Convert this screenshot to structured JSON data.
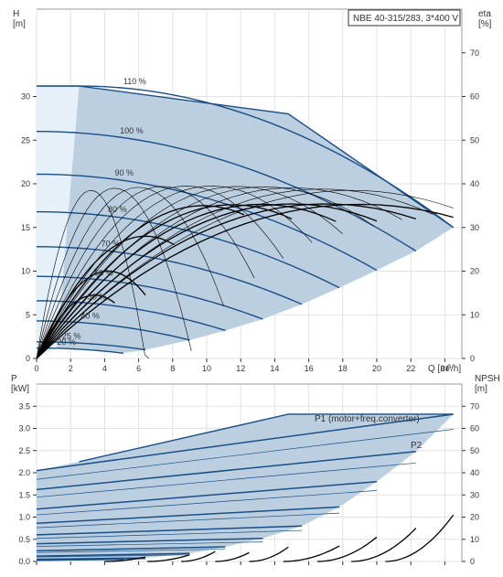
{
  "chart_data": [
    {
      "type": "line",
      "title": "NBE 40-315/283, 3*400 V",
      "xlabel": "Q [m³/h]",
      "ylabel": "H\n[m]",
      "y2label": "eta\n[%]",
      "xlim": [
        0,
        25
      ],
      "ylim": [
        0,
        40
      ],
      "y2lim": [
        0,
        80
      ],
      "x_ticks": [
        "0",
        "2",
        "4",
        "6",
        "8",
        "10",
        "12",
        "14",
        "16",
        "18",
        "20",
        "22",
        "24"
      ],
      "y_ticks": [
        "0",
        "5",
        "10",
        "15",
        "20",
        "25",
        "30"
      ],
      "y2_ticks": [
        "0",
        "10",
        "20",
        "30",
        "40",
        "50",
        "60",
        "70"
      ],
      "grid": true,
      "colors": {
        "curve": "#1a4f86",
        "area": "#bccfe0",
        "eta": "#000000"
      },
      "speed_curves": [
        {
          "label": "110 %",
          "h0": 31.2,
          "x_end": 24.5,
          "h_end": 15.0,
          "x_flat": 2.5
        },
        {
          "label": "100 %",
          "h0": 26.0,
          "x_end": 22.3,
          "h_end": 12.3
        },
        {
          "label": "90 %",
          "h0": 21.1,
          "x_end": 20.0,
          "h_end": 10.1
        },
        {
          "label": "80 %",
          "h0": 16.8,
          "x_end": 17.8,
          "h_end": 8.1
        },
        {
          "label": "70 %",
          "h0": 12.8,
          "x_end": 15.6,
          "h_end": 6.2
        },
        {
          "label": "60 %",
          "h0": 9.4,
          "x_end": 13.3,
          "h_end": 4.5
        },
        {
          "label": "50 %",
          "h0": 6.6,
          "x_end": 11.1,
          "h_end": 3.2
        },
        {
          "label": "40 %",
          "h0": 4.3,
          "x_end": 9.0,
          "h_end": 2.1
        },
        {
          "label": "25 %",
          "h0": 1.9,
          "x_end": 6.4,
          "h_end": 1.0
        },
        {
          "label": "20 %",
          "h0": 1.2,
          "x_end": 5.1,
          "h_end": 0.6
        }
      ],
      "limit_curve": [
        [
          2.5,
          31.2
        ],
        [
          14.8,
          28.0
        ],
        [
          24.5,
          15.0
        ]
      ],
      "eta_curves": [
        {
          "peak_x": 3.2,
          "peak_eta": 38.5,
          "x_end": 6.6
        },
        {
          "peak_x": 4.6,
          "peak_eta": 39.0,
          "x_end": 9.1
        },
        {
          "peak_x": 6.0,
          "peak_eta": 39.2,
          "x_end": 11.0
        },
        {
          "peak_x": 7.4,
          "peak_eta": 39.4,
          "x_end": 12.8
        },
        {
          "peak_x": 8.8,
          "peak_eta": 39.5,
          "x_end": 14.5
        },
        {
          "peak_x": 10.3,
          "peak_eta": 39.5,
          "x_end": 16.2
        },
        {
          "peak_x": 11.8,
          "peak_eta": 39.4,
          "x_end": 18.0
        },
        {
          "peak_x": 13.4,
          "peak_eta": 39.3,
          "x_end": 19.8
        },
        {
          "peak_x": 15.0,
          "peak_eta": 39.1,
          "x_end": 21.5
        },
        {
          "peak_x": 16.8,
          "peak_eta": 38.8,
          "x_end": 23.3
        },
        {
          "peak_x": 18.5,
          "peak_eta": 38.5,
          "x_end": 24.5
        },
        {
          "peak_x": 9.8,
          "peak_eta": 35.0,
          "x_end": 12.2
        },
        {
          "peak_x": 11.5,
          "peak_eta": 35.2,
          "x_end": 15.0
        },
        {
          "peak_x": 13.2,
          "peak_eta": 35.3,
          "x_end": 17.6
        },
        {
          "peak_x": 15.0,
          "peak_eta": 35.4,
          "x_end": 20.0
        },
        {
          "peak_x": 17.0,
          "peak_eta": 35.4,
          "x_end": 22.3
        },
        {
          "peak_x": 19.0,
          "peak_eta": 35.3,
          "x_end": 24.5
        },
        {
          "peak_x": 6.4,
          "peak_eta": 28.0,
          "x_end": 8.1
        },
        {
          "peak_x": 4.2,
          "peak_eta": 20.0,
          "x_end": 6.4
        },
        {
          "peak_x": 3.4,
          "peak_eta": 14.5,
          "x_end": 4.6
        }
      ]
    },
    {
      "type": "line",
      "xlabel": "",
      "ylabel": "P\n[kW]",
      "y2label": "NPSH\n[m]",
      "xlim": [
        0,
        25
      ],
      "ylim": [
        0,
        4
      ],
      "y2lim": [
        0,
        80
      ],
      "y_ticks": [
        "0.0",
        "0.5",
        "1.0",
        "1.5",
        "2.0",
        "2.5",
        "3.0",
        "3.5"
      ],
      "y2_ticks": [
        "0",
        "10",
        "20",
        "30",
        "40",
        "50",
        "60",
        "70"
      ],
      "grid": true,
      "series_labels": {
        "p1": "P1 (motor+freq.converter)",
        "p2": "P2"
      },
      "p1_envelope": [
        [
          2.5,
          2.25
        ],
        [
          14.8,
          3.32
        ],
        [
          24.5,
          3.32
        ]
      ],
      "power_curves": [
        {
          "p1_start": 2.05,
          "p2_start": 1.85,
          "x_end": 24.5,
          "p1_end": 3.32,
          "p2_end": 2.98
        },
        {
          "p1_start": 1.62,
          "p2_start": 1.45,
          "x_end": 22.3,
          "p1_end": 2.48,
          "p2_end": 2.22
        },
        {
          "p1_start": 1.18,
          "p2_start": 1.05,
          "x_end": 20.0,
          "p1_end": 1.8,
          "p2_end": 1.6
        },
        {
          "p1_start": 0.86,
          "p2_start": 0.76,
          "x_end": 17.8,
          "p1_end": 1.23,
          "p2_end": 1.09
        },
        {
          "p1_start": 0.6,
          "p2_start": 0.52,
          "x_end": 15.6,
          "p1_end": 0.8,
          "p2_end": 0.7
        },
        {
          "p1_start": 0.4,
          "p2_start": 0.34,
          "x_end": 13.3,
          "p1_end": 0.52,
          "p2_end": 0.44
        },
        {
          "p1_start": 0.24,
          "p2_start": 0.2,
          "x_end": 11.1,
          "p1_end": 0.33,
          "p2_end": 0.28
        },
        {
          "p1_start": 0.12,
          "p2_start": 0.1,
          "x_end": 9.0,
          "p1_end": 0.18,
          "p2_end": 0.15
        },
        {
          "p1_start": 0.05,
          "p2_start": 0.04,
          "x_end": 6.4,
          "p1_end": 0.08,
          "p2_end": 0.06
        },
        {
          "p1_start": 0.03,
          "p2_start": 0.02,
          "x_end": 5.1,
          "p1_end": 0.05,
          "p2_end": 0.04
        }
      ],
      "npsh_curves": [
        {
          "x_start": 4.0,
          "x_end": 6.4,
          "npsh_end": 2.0
        },
        {
          "x_start": 6.5,
          "x_end": 9.0,
          "npsh_end": 3.0
        },
        {
          "x_start": 8.5,
          "x_end": 10.5,
          "npsh_end": 4.5
        },
        {
          "x_start": 10.5,
          "x_end": 12.5,
          "npsh_end": 4.0
        },
        {
          "x_start": 12.5,
          "x_end": 14.8,
          "npsh_end": 6.5
        },
        {
          "x_start": 14.5,
          "x_end": 17.8,
          "npsh_end": 7.0
        },
        {
          "x_start": 16.5,
          "x_end": 20.0,
          "npsh_end": 11.0
        },
        {
          "x_start": 18.5,
          "x_end": 22.3,
          "npsh_end": 15.0
        },
        {
          "x_start": 20.5,
          "x_end": 24.5,
          "npsh_end": 21.0
        }
      ]
    }
  ]
}
